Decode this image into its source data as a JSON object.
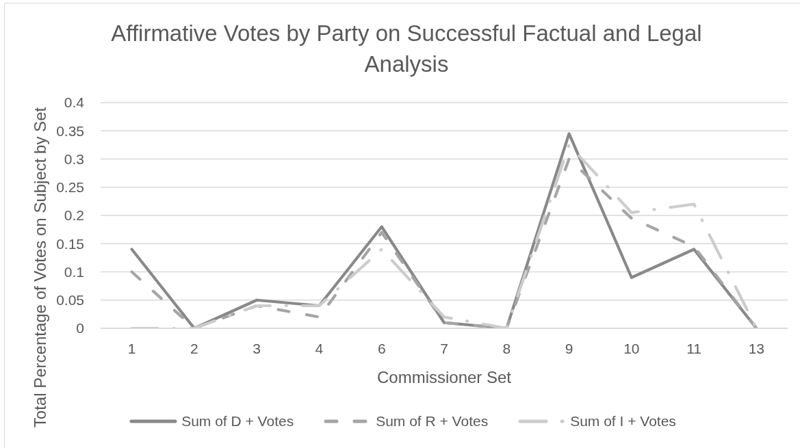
{
  "chart_data": {
    "type": "line",
    "title": "Affirmative Votes by Party on Successful Factual and Legal Analysis",
    "xlabel": "Commissioner Set",
    "ylabel": "Total Percentage of Votes on Subject by Set",
    "categories": [
      "1",
      "2",
      "3",
      "4",
      "6",
      "7",
      "8",
      "9",
      "10",
      "11",
      "13"
    ],
    "series": [
      {
        "name": "Sum of D + Votes",
        "color": "#898989",
        "line_style": "solid",
        "values": [
          0.14,
          0,
          0.05,
          0.04,
          0.18,
          0.01,
          0,
          0.345,
          0.09,
          0.14,
          0
        ]
      },
      {
        "name": "Sum of R + Votes",
        "color": "#a5a5a5",
        "line_style": "dashed",
        "values": [
          0.1,
          0,
          0.04,
          0.02,
          0.17,
          0.01,
          0,
          0.3,
          0.195,
          0.145,
          0
        ]
      },
      {
        "name": "Sum of I + Votes",
        "color": "#cccccc",
        "line_style": "dashdot",
        "values": [
          0,
          0,
          0.04,
          0.04,
          0.14,
          0.02,
          0,
          0.325,
          0.205,
          0.22,
          0
        ]
      }
    ],
    "ylim": [
      0,
      0.4
    ],
    "yticks": [
      0,
      0.05,
      0.1,
      0.15,
      0.2,
      0.25,
      0.3,
      0.35,
      0.4
    ],
    "grid": "y",
    "legend": "bottom",
    "marker": "none"
  }
}
